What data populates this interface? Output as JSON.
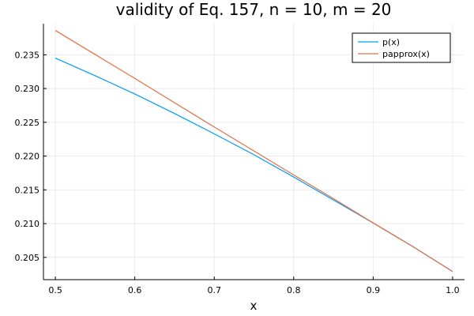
{
  "chart_data": {
    "type": "line",
    "title": "validity of Eq. 157, n = 10, m = 20",
    "xlabel": "x",
    "ylabel": "",
    "xlim": [
      0.485,
      1.015
    ],
    "ylim": [
      0.2017,
      0.2396
    ],
    "xticks": [
      0.5,
      0.6,
      0.7,
      0.8,
      0.9,
      1.0
    ],
    "xtick_labels": [
      "0.5",
      "0.6",
      "0.7",
      "0.8",
      "0.9",
      "1.0"
    ],
    "yticks": [
      0.205,
      0.21,
      0.215,
      0.22,
      0.225,
      0.23,
      0.235
    ],
    "ytick_labels": [
      "0.205",
      "0.210",
      "0.215",
      "0.220",
      "0.225",
      "0.230",
      "0.235"
    ],
    "grid": true,
    "legend_position": "top-right",
    "series": [
      {
        "name": "p(x)",
        "color": "#009af9",
        "x": [
          0.5,
          0.55,
          0.6,
          0.65,
          0.7,
          0.75,
          0.8,
          0.85,
          0.9,
          0.95,
          1.0
        ],
        "y": [
          0.2345,
          0.2319,
          0.2292,
          0.2263,
          0.2233,
          0.2202,
          0.2169,
          0.2135,
          0.2101,
          0.2066,
          0.2029
        ]
      },
      {
        "name": "papprox(x)",
        "color": "#e26f46",
        "x": [
          0.5,
          0.6,
          0.7,
          0.8,
          0.85,
          0.9,
          0.95,
          1.0
        ],
        "y": [
          0.2386,
          0.2315,
          0.2243,
          0.2172,
          0.2137,
          0.2101,
          0.2066,
          0.2029
        ]
      }
    ]
  }
}
